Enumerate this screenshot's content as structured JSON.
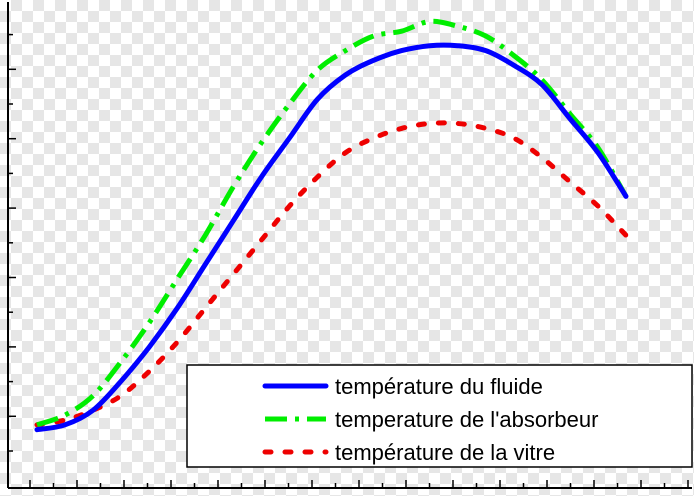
{
  "chart_data": {
    "type": "line",
    "title": "",
    "xlabel": "",
    "ylabel": "",
    "xlim": [
      0,
      24
    ],
    "ylim": [
      0,
      100
    ],
    "series": [
      {
        "name": "température du fluide",
        "color": "#0000ff",
        "style": "solid",
        "x": [
          0,
          1,
          2,
          3,
          4,
          5,
          6,
          7,
          8,
          9,
          10,
          11,
          12,
          13,
          14,
          15,
          16,
          17,
          18,
          19,
          20,
          21
        ],
        "y": [
          12,
          13,
          16,
          22,
          29,
          37,
          46,
          55,
          64,
          72,
          80,
          85,
          88,
          90,
          91,
          91,
          90,
          87,
          83,
          76,
          69,
          60
        ]
      },
      {
        "name": "temperature de l'absorbeur",
        "color": "#00ee00",
        "style": "dashdot",
        "x": [
          0,
          1,
          2,
          3,
          4,
          5,
          6,
          7,
          8,
          9,
          10,
          11,
          12,
          13,
          14,
          15,
          16,
          17,
          18,
          19,
          20,
          21
        ],
        "y": [
          13,
          15,
          19,
          26,
          34,
          43,
          52,
          62,
          71,
          79,
          86,
          90,
          93,
          94,
          96,
          95,
          93,
          89,
          84,
          77,
          70,
          60
        ]
      },
      {
        "name": "température de la vitre",
        "color": "#ee0000",
        "style": "dotted",
        "x": [
          0,
          1,
          2,
          3,
          4,
          5,
          6,
          7,
          8,
          9,
          10,
          11,
          12,
          13,
          14,
          15,
          16,
          17,
          18,
          19,
          20,
          21
        ],
        "y": [
          13,
          14,
          16,
          19,
          24,
          30,
          37,
          44,
          51,
          58,
          64,
          69,
          72,
          74,
          75,
          75,
          74,
          72,
          68,
          63,
          58,
          52
        ]
      }
    ],
    "legend_position": "bottom-right",
    "grid": false
  }
}
